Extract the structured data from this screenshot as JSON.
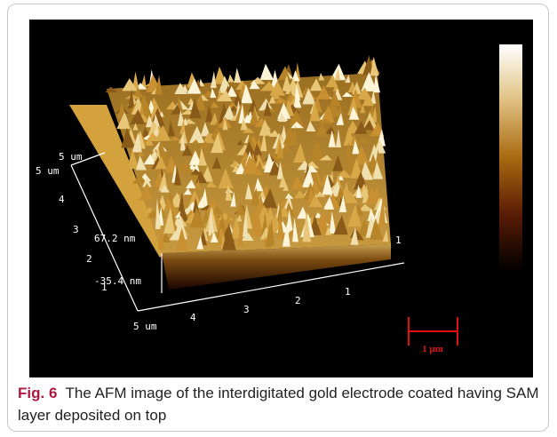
{
  "figure": {
    "image": {
      "left_axis_labels": [
        "5 um",
        "5 um",
        "4",
        "3",
        "2",
        "1"
      ],
      "bottom_axis_labels": [
        "5 um",
        "4",
        "3",
        "2",
        "1"
      ],
      "right_label": "1",
      "height_labels": [
        "67.2 nm",
        "-35.4 nm"
      ],
      "scale_bar": "1 µm"
    },
    "caption": {
      "label": "Fig. 6",
      "text": "The AFM image of the interdigitated gold electrode coated having SAM layer deposited on top"
    }
  }
}
